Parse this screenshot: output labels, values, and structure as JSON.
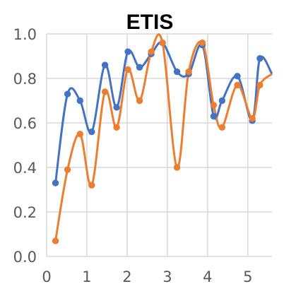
{
  "chart_data": {
    "type": "scatter",
    "title": "ETIS",
    "xlabel": "",
    "ylabel": "",
    "xlim": [
      0,
      5.6
    ],
    "ylim": [
      0,
      1.0
    ],
    "x_ticks": [
      "0",
      "1",
      "2",
      "3",
      "4",
      "5"
    ],
    "y_ticks": [
      "0.0",
      "0.2",
      "0.4",
      "0.6",
      "0.8",
      "1.0"
    ],
    "grid": true,
    "legend": "none",
    "series": [
      {
        "color": "#4472c4",
        "x": [
          0.22,
          0.52,
          0.83,
          1.12,
          1.45,
          1.74,
          2.02,
          2.31,
          2.6,
          2.88,
          3.24,
          3.53,
          3.87,
          4.15,
          4.36,
          4.74,
          5.11,
          5.3,
          5.6
        ],
        "y": [
          0.33,
          0.73,
          0.7,
          0.56,
          0.86,
          0.67,
          0.92,
          0.85,
          0.91,
          0.96,
          0.83,
          0.82,
          0.95,
          0.63,
          0.7,
          0.81,
          0.61,
          0.89,
          0.82
        ]
      },
      {
        "color": "#ed7d31",
        "x": [
          0.22,
          0.52,
          0.83,
          1.12,
          1.45,
          1.74,
          2.02,
          2.31,
          2.6,
          2.88,
          3.24,
          3.53,
          3.87,
          4.15,
          4.36,
          4.74,
          5.11,
          5.3,
          5.6
        ],
        "y": [
          0.07,
          0.39,
          0.55,
          0.32,
          0.74,
          0.58,
          0.84,
          0.7,
          0.92,
          0.96,
          0.4,
          0.83,
          0.96,
          0.68,
          0.58,
          0.77,
          0.62,
          0.77,
          0.82
        ]
      }
    ]
  }
}
